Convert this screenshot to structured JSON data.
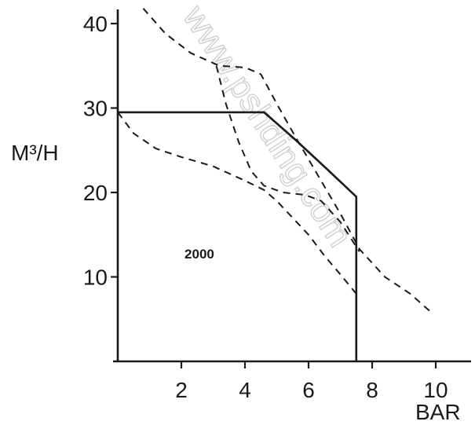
{
  "chart_data": {
    "type": "line",
    "xlabel": "BAR",
    "ylabel": "M³/H",
    "xlim": [
      0,
      11
    ],
    "ylim": [
      0,
      42
    ],
    "x_ticks": [
      "2",
      "4",
      "6",
      "8",
      "10"
    ],
    "y_ticks": [
      "10",
      "20",
      "30",
      "40"
    ],
    "grid": false,
    "legend": "none",
    "annotations": [
      {
        "text": "2000",
        "x": 2.1,
        "y": 12.2
      }
    ],
    "watermark": "www.pshding.com",
    "series": [
      {
        "style": "solid",
        "points": [
          [
            0,
            29.5
          ],
          [
            4.6,
            29.5
          ],
          [
            5.6,
            26.2
          ],
          [
            6.6,
            22.7
          ],
          [
            7.5,
            19.5
          ],
          [
            7.5,
            0
          ]
        ]
      },
      {
        "style": "dashed",
        "points": [
          [
            0,
            29.5
          ],
          [
            0.5,
            27.0
          ],
          [
            1.2,
            25.2
          ],
          [
            2.0,
            24.2
          ],
          [
            3.0,
            23.1
          ],
          [
            4.0,
            21.4
          ],
          [
            4.6,
            20.3
          ],
          [
            5.0,
            19.0
          ],
          [
            5.5,
            17.0
          ],
          [
            6.0,
            15.0
          ],
          [
            6.5,
            12.5
          ],
          [
            7.0,
            10.3
          ],
          [
            7.5,
            8.0
          ]
        ]
      },
      {
        "style": "dashed",
        "points": [
          [
            0.8,
            41.8
          ],
          [
            1.5,
            38.8
          ],
          [
            2.3,
            36.5
          ],
          [
            3.2,
            35.0
          ],
          [
            4.0,
            34.8
          ],
          [
            4.5,
            34.0
          ],
          [
            5.0,
            30.5
          ],
          [
            5.6,
            26.5
          ],
          [
            6.3,
            22.0
          ],
          [
            7.0,
            17.5
          ],
          [
            7.6,
            13.3
          ],
          [
            8.4,
            10.0
          ],
          [
            9.2,
            8.0
          ],
          [
            9.8,
            6.0
          ]
        ]
      },
      {
        "style": "dashed",
        "points": [
          [
            3.1,
            35.0
          ],
          [
            3.4,
            30.5
          ],
          [
            3.8,
            26.0
          ],
          [
            4.2,
            22.5
          ],
          [
            4.6,
            20.8
          ],
          [
            5.2,
            20.0
          ],
          [
            5.9,
            19.7
          ],
          [
            6.4,
            19.0
          ],
          [
            7.0,
            16.5
          ],
          [
            7.6,
            13.0
          ]
        ]
      }
    ]
  }
}
